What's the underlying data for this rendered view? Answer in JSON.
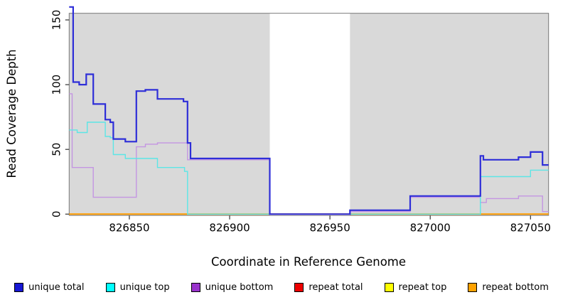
{
  "chart_data": {
    "type": "line",
    "subtype": "step-coverage-plot",
    "title": "",
    "xlabel": "Coordinate in Reference Genome",
    "ylabel": "Read Coverage Depth",
    "xlim": [
      826820,
      827059
    ],
    "ylim": [
      0,
      165
    ],
    "x_ticks": [
      826850,
      826900,
      826950,
      827000,
      827050
    ],
    "y_ticks": [
      0,
      50,
      100,
      150
    ],
    "grid": "off",
    "plot_bg": "#d9d9d9",
    "box_color": "#777777",
    "tick_color": "#333333",
    "text_color": "#000000",
    "masked_region": {
      "x_start": 826920,
      "x_end": 826960,
      "color": "#ffffff"
    },
    "series": [
      {
        "name": "repeat total",
        "line_color": "#dd0000",
        "line_width": 1.2,
        "points": [
          [
            826820,
            0
          ]
        ]
      },
      {
        "name": "repeat top",
        "line_color": "#f0f000",
        "line_width": 1.2,
        "points": [
          [
            826820,
            0
          ]
        ]
      },
      {
        "name": "repeat bottom",
        "line_color": "#ff9d00",
        "line_width": 2,
        "points": [
          [
            826820,
            0
          ]
        ]
      },
      {
        "name": "unique bottom",
        "line_color": "#c495e2",
        "line_width": 1.4,
        "points": [
          [
            826820,
            93
          ],
          [
            826821.5,
            36
          ],
          [
            826832,
            13
          ],
          [
            826853.5,
            52
          ],
          [
            826858,
            54
          ],
          [
            826864,
            55
          ],
          [
            826879,
            42
          ],
          [
            826920,
            0
          ],
          [
            826960,
            2
          ],
          [
            826990,
            13
          ],
          [
            827025,
            9
          ],
          [
            827028,
            12
          ],
          [
            827044,
            14
          ],
          [
            827056,
            2
          ]
        ]
      },
      {
        "name": "unique top",
        "line_color": "#5ce6e6",
        "line_width": 1.4,
        "points": [
          [
            826820,
            65
          ],
          [
            826824,
            63
          ],
          [
            826829,
            71
          ],
          [
            826838,
            60
          ],
          [
            826840.5,
            59
          ],
          [
            826842,
            46
          ],
          [
            826848,
            43
          ],
          [
            826864,
            36
          ],
          [
            826877.5,
            33
          ],
          [
            826879,
            0
          ],
          [
            827025,
            29
          ],
          [
            827050,
            34
          ]
        ]
      },
      {
        "name": "unique total",
        "line_color": "#2e2ed8",
        "line_width": 2.2,
        "points": [
          [
            826820,
            160
          ],
          [
            826822,
            102
          ],
          [
            826825,
            100
          ],
          [
            826828.5,
            108
          ],
          [
            826832,
            85
          ],
          [
            826838,
            73
          ],
          [
            826840.5,
            71
          ],
          [
            826842,
            58
          ],
          [
            826848,
            56
          ],
          [
            826853.5,
            95
          ],
          [
            826858,
            96
          ],
          [
            826864,
            89
          ],
          [
            826877,
            87
          ],
          [
            826879,
            55
          ],
          [
            826880.5,
            43
          ],
          [
            826920,
            0
          ],
          [
            826960,
            3
          ],
          [
            826990,
            14
          ],
          [
            827025,
            45
          ],
          [
            827026.5,
            42
          ],
          [
            827044,
            44
          ],
          [
            827050,
            48
          ],
          [
            827056,
            38
          ]
        ]
      }
    ],
    "legend_position": "bottom"
  },
  "legend": {
    "items": [
      {
        "label": "unique total",
        "color": "#1717d4"
      },
      {
        "label": "unique top",
        "color": "#00ffff"
      },
      {
        "label": "unique bottom",
        "color": "#9933cc"
      },
      {
        "label": "repeat total",
        "color": "#ee0000"
      },
      {
        "label": "repeat top",
        "color": "#ffff00"
      },
      {
        "label": "repeat bottom",
        "color": "#ffa200"
      }
    ]
  }
}
